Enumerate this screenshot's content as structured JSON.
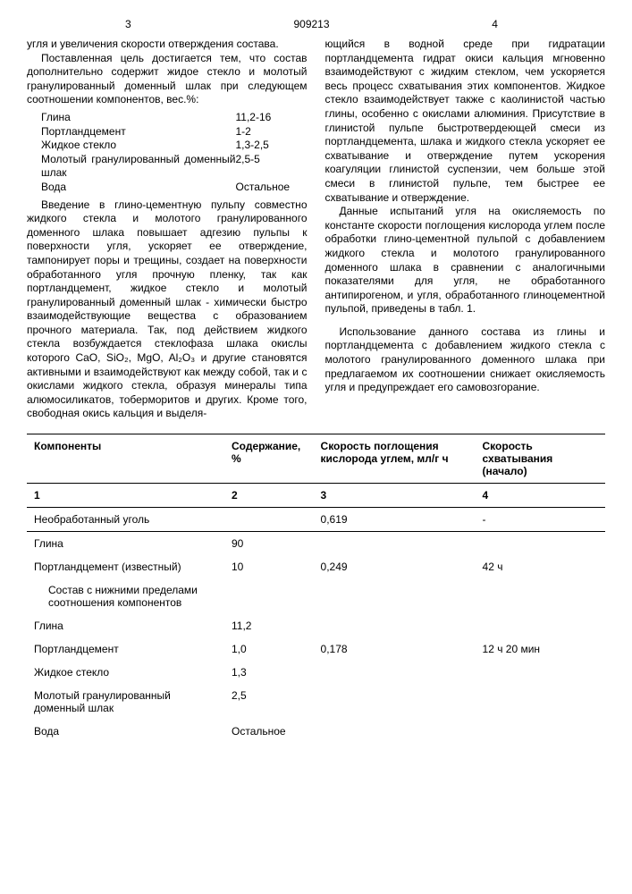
{
  "header": {
    "page_left": "3",
    "doc_number": "909213",
    "page_right": "4"
  },
  "left_col": {
    "p1": "угля и увеличения скорости отверждения состава.",
    "p2": "Поставленная цель достигается тем, что состав дополнительно содержит жидое стекло и молотый гранулированный доменный шлак при следующем соотношении компонентов, вес.%:",
    "components": [
      {
        "label": "Глина",
        "value": "11,2-16"
      },
      {
        "label": "Портландцемент",
        "value": "1-2"
      },
      {
        "label": "Жидкое стекло",
        "value": "1,3-2,5"
      },
      {
        "label": "Молотый гранулированный доменный шлак",
        "value": "2,5-5"
      },
      {
        "label": "Вода",
        "value": "Остальное"
      }
    ],
    "p3": "Введение в глино-цементную пульпу совместно жидкого стекла и молотого гранулированного доменного шлака повышает адгезию пульпы к поверхности угля, ускоряет ее отверждение, тампонирует поры и трещины, создает на поверхности обработанного угля прочную пленку, так как портландцемент, жидкое стекло и молотый гранулированный доменный шлак - химически быстро взаимодействующие вещества с образованием прочного материала. Так, под действием жидкого стекла возбуждается стеклофаза шлака окислы которого CaO, SiO₂, MgO, Al₂O₃ и другие становятся активными и взаимодействуют как между собой, так и с окислами жидкого стекла, образуя минералы типа алюмосиликатов, тоберморитов и других. Кроме того, свободная окись кальция и выделя-"
  },
  "right_col": {
    "p1": "ющийся в водной среде при гидратации портландцемента гидрат окиси кальция мгновенно взаимодействуют с жидким стеклом, чем ускоряется весь процесс схватывания этих компонентов. Жидкое стекло взаимодействует также с каолинистой частью глины, особенно с окислами алюминия. Присутствие в глинистой пульпе быстротвердеющей смеси из портландцемента, шлака и жидкого стекла ускоряет ее схватывание и отверждение путем ускорения коагуляции глинистой суспензии, чем больше этой смеси в глинистой пульпе, тем быстрее ее схватывание и отверждение.",
    "p2": "Данные испытаний угля на окисляемость по константе скорости поглощения кислорода углем после обработки глино-цементной пульпой с добавлением жидкого стекла и молотого гранулированного доменного шлака в сравнении с аналогичными показателями для угля, не обработанного антипирогеном, и угля, обработанного глиноцементной пульпой, приведены в табл. 1.",
    "p3": "Использование данного состава из глины и портландцемента с добавлением жидкого стекла с молотого гранулированного доменного шлака при предлагаемом их соотношении снижает окисляемость угля и предупреждает его самовозгорание."
  },
  "table": {
    "headers": [
      "Компоненты",
      "Содержание, %",
      "Скорость поглощения кислорода углем, мл/г ч",
      "Скорость схватывания (начало)"
    ],
    "col_nums": [
      "1",
      "2",
      "3",
      "4"
    ],
    "rows": [
      {
        "c1": "Необработанный уголь",
        "c2": "",
        "c3": "0,619",
        "c4": "-",
        "cls": "untreated"
      },
      {
        "c1": "Глина",
        "c2": "90",
        "c3": "",
        "c4": ""
      },
      {
        "c1": "Портландцемент (известный)",
        "c2": "10",
        "c3": "0,249",
        "c4": "42 ч"
      },
      {
        "c1": "Состав с нижними пределами соотношения компонентов",
        "c2": "",
        "c3": "",
        "c4": "",
        "cls": "pad-left"
      },
      {
        "c1": "Глина",
        "c2": "11,2",
        "c3": "",
        "c4": ""
      },
      {
        "c1": "Портландцемент",
        "c2": "1,0",
        "c3": "0,178",
        "c4": "12 ч 20 мин"
      },
      {
        "c1": "Жидкое стекло",
        "c2": "1,3",
        "c3": "",
        "c4": ""
      },
      {
        "c1": "Молотый гранулированный доменный шлак",
        "c2": "2,5",
        "c3": "",
        "c4": ""
      },
      {
        "c1": "Вода",
        "c2": "Остальное",
        "c3": "",
        "c4": ""
      }
    ]
  }
}
